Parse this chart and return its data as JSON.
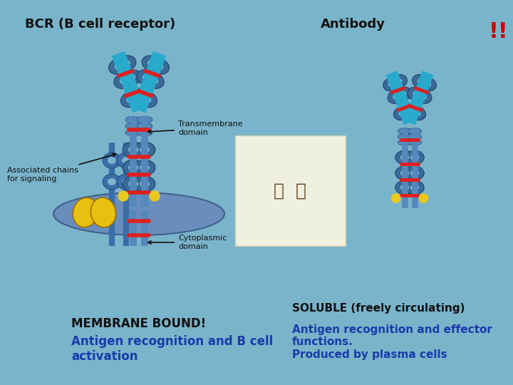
{
  "bg_color": "#7ab4cb",
  "title_left": "BCR (B cell receptor)",
  "title_right": "Antibody",
  "exclamation": "!!",
  "exclamation_color": "#cc0000",
  "label_assoc": "Associated chains\nfor signaling",
  "label_trans": "Transmembrane\ndomain",
  "label_cyto": "Cytoplasmic\ndomain",
  "left_bottom_bold": "MEMBRANE BOUND!",
  "left_bottom_text": "Antigen recognition and B cell\nactivation",
  "right_label_soluble": "SOLUBLE (freely circulating)",
  "right_bottom": "Antigen recognition and effector\nfunctions.\nProduced by plasma cells",
  "main_col": "#4a7aaa",
  "dark_col": "#1a3e68",
  "teal_col": "#1a8888",
  "light_teal": "#28aacc",
  "ring_col": "#3a6a98",
  "red_col": "#dd2020",
  "yellow_col": "#e8c820",
  "mem_col": "#5577aa",
  "text_dark": "#111111",
  "text_blue": "#1a3aaa"
}
